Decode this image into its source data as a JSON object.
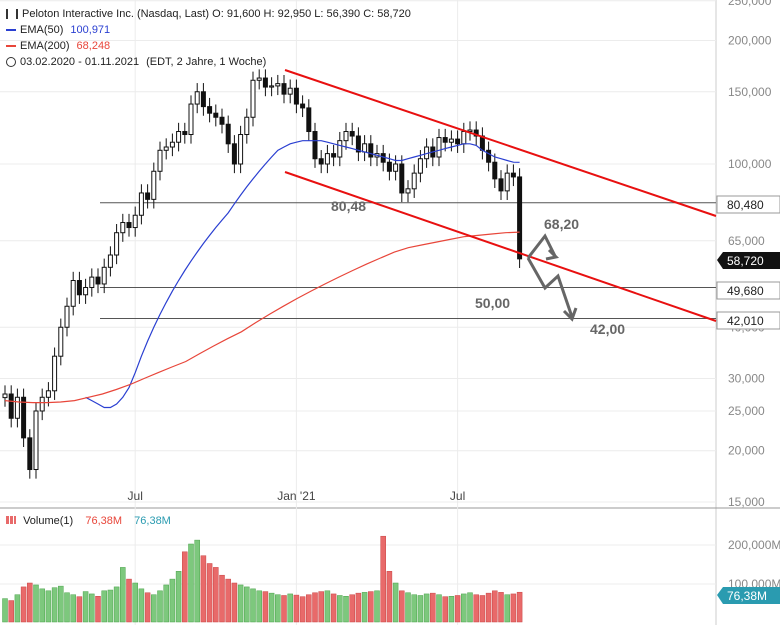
{
  "legend": {
    "title_line": "Peloton Interactive Inc. (Nasdaq, Last)  O: 91,600  H: 92,950  L: 56,390  C: 58,720",
    "ema50": "EMA(50)",
    "ema50_value": "100,971",
    "ema200": "EMA(200)",
    "ema200_value": "68,248",
    "period": "03.02.2020 - 01.11.2021",
    "period_note": "(EDT, 2 Jahre, 1 Woche)",
    "volume_label": "Volume(1)",
    "volume_value_red": "76,38M",
    "volume_value_blue": "76,38M"
  },
  "annotations": {
    "level_80": "80,48",
    "level_68": "68,20",
    "level_50": "50,00",
    "level_42": "42,00"
  },
  "price_tags": {
    "resistance": "80,480",
    "last": "58,720",
    "mid": "49,680",
    "low": "42,010",
    "volume_last": "76,38M"
  },
  "colors": {
    "up": "#7dc87d",
    "down": "#e86a6a",
    "ema50": "#2a3fd1",
    "ema200": "#e8463a",
    "channel": "#e81010",
    "arrow": "#666666",
    "candle": "#111111"
  },
  "chart_data": {
    "type": "line",
    "scale": "log",
    "y_ticks": [
      "250,000",
      "200,000",
      "150,000",
      "100,000",
      "65,000",
      "40,000",
      "30,000",
      "25,000",
      "20,000",
      "15,000"
    ],
    "y_tick_values": [
      250,
      200,
      150,
      100,
      65,
      40,
      30,
      25,
      20,
      15
    ],
    "x_ticks": [
      "Jul",
      "Jan '21",
      "Jul"
    ],
    "x_tick_weeks": [
      21,
      47,
      73
    ],
    "weekly_close": [
      27.5,
      24,
      27,
      21.5,
      18,
      25,
      27,
      28,
      34,
      40,
      45,
      52,
      48,
      50,
      53,
      51,
      56,
      60,
      68,
      72,
      70,
      75,
      85,
      82,
      96,
      108,
      110,
      113,
      120,
      118,
      140,
      150,
      138,
      133,
      130,
      125,
      112,
      100,
      118,
      130,
      160,
      162,
      154,
      155,
      157,
      148,
      153,
      140,
      137,
      120,
      103,
      100,
      106,
      104,
      114,
      120,
      117,
      107,
      112,
      104,
      106,
      101,
      96,
      100,
      85,
      87,
      95,
      103,
      110,
      104,
      116,
      113,
      115,
      112,
      120,
      121,
      117,
      108,
      101,
      92,
      86,
      95,
      93,
      58.72
    ],
    "ema50": [
      27,
      26.5,
      26,
      25.5,
      25.5,
      26,
      27,
      28.5,
      31,
      34,
      37,
      40,
      43,
      46,
      49,
      52,
      55,
      58,
      61,
      64,
      67,
      70,
      73,
      76,
      80,
      84,
      88,
      92,
      96,
      100,
      104,
      108,
      110,
      112,
      113,
      114,
      114,
      114,
      114,
      113,
      112,
      111,
      110,
      109,
      108,
      107,
      106,
      105,
      104,
      103,
      102,
      102,
      103,
      104,
      105,
      106,
      107,
      108,
      109,
      110,
      111,
      112,
      112,
      111,
      108,
      106,
      104,
      103,
      102,
      101,
      100.971
    ],
    "ema200": [
      26.5,
      26.3,
      26.2,
      26.2,
      26.3,
      26.5,
      27,
      27.5,
      28.2,
      29,
      30,
      31,
      32,
      33,
      34.5,
      36,
      37.5,
      39,
      41,
      43,
      45,
      47,
      49,
      51,
      53,
      55,
      57,
      59,
      61,
      62.5,
      63.5,
      64.5,
      65.5,
      66.5,
      67,
      67.5,
      68,
      68.248
    ],
    "ema200_start_week": 47,
    "volume_millions": [
      60,
      55,
      70,
      90,
      100,
      95,
      85,
      80,
      88,
      92,
      75,
      70,
      65,
      78,
      72,
      66,
      80,
      82,
      90,
      140,
      110,
      100,
      85,
      75,
      70,
      80,
      95,
      110,
      130,
      180,
      200,
      210,
      170,
      150,
      140,
      120,
      110,
      100,
      95,
      90,
      85,
      80,
      78,
      74,
      70,
      68,
      72,
      69,
      65,
      70,
      75,
      78,
      80,
      72,
      68,
      66,
      70,
      74,
      76,
      78,
      80,
      220,
      130,
      100,
      80,
      75,
      70,
      68,
      72,
      74,
      70,
      65,
      66,
      68,
      72,
      75,
      70,
      68,
      74,
      80,
      76,
      70,
      72,
      76.38
    ],
    "levels": [
      80.48,
      68.2,
      50.0,
      42.0
    ],
    "period": "03.02.2020 - 01.11.2021"
  }
}
